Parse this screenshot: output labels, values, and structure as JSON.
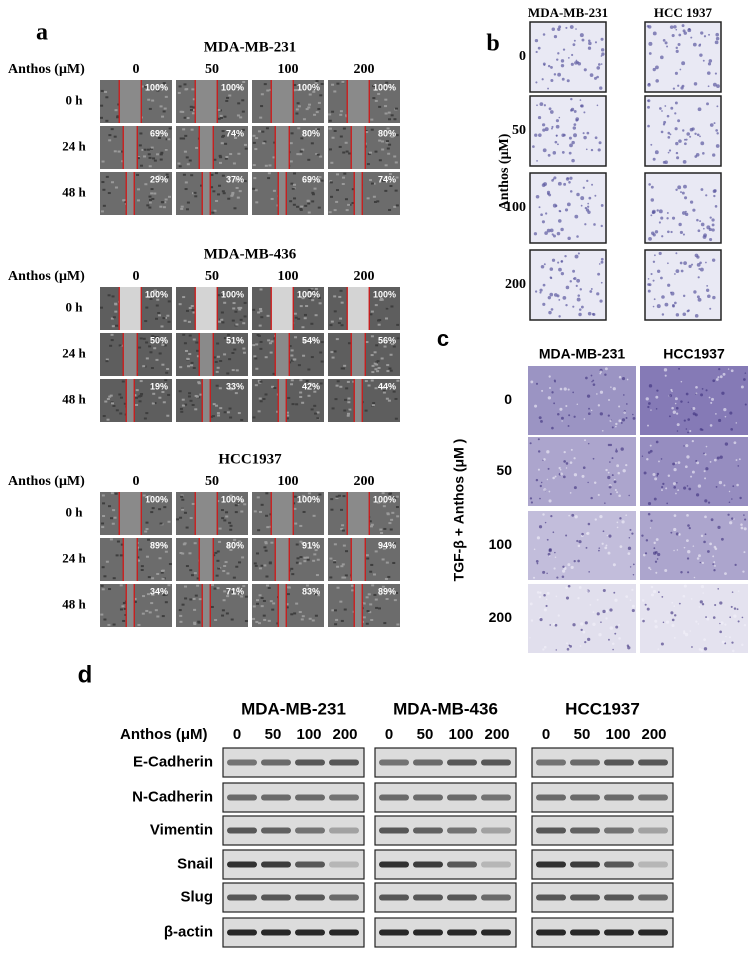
{
  "panel_a": {
    "label": "a",
    "concentration_label": "Anthos (μM)",
    "concentrations": [
      "0",
      "50",
      "100",
      "200"
    ],
    "time_points": [
      "0 h",
      "24 h",
      "48 h"
    ],
    "blocks": [
      {
        "title": "MDA-MB-231",
        "closure": [
          [
            "100%",
            "100%",
            "100%",
            "100%"
          ],
          [
            "69%",
            "74%",
            "80%",
            "80%"
          ],
          [
            "29%",
            "37%",
            "69%",
            "74%"
          ]
        ]
      },
      {
        "title": "MDA-MB-436",
        "closure": [
          [
            "100%",
            "100%",
            "100%",
            "100%"
          ],
          [
            "50%",
            "51%",
            "54%",
            "56%"
          ],
          [
            "19%",
            "33%",
            "42%",
            "44%"
          ]
        ]
      },
      {
        "title": "HCC1937",
        "closure": [
          [
            "100%",
            "100%",
            "100%",
            "100%"
          ],
          [
            "89%",
            "80%",
            "91%",
            "94%"
          ],
          [
            "34%",
            "71%",
            "83%",
            "89%"
          ]
        ]
      }
    ]
  },
  "panel_b": {
    "label": "b",
    "columns": [
      "MDA-MB-231",
      "HCC 1937"
    ],
    "axis_label": "Anthos (μM)",
    "rows": [
      "0",
      "50",
      "100",
      "200"
    ]
  },
  "panel_c": {
    "label": "c",
    "columns": [
      "MDA-MB-231",
      "HCC1937"
    ],
    "axis_label": "TGF-β + Anthos (μM )",
    "rows": [
      "0",
      "50",
      "100",
      "200"
    ]
  },
  "panel_d": {
    "label": "d",
    "groups": [
      "MDA-MB-231",
      "MDA-MB-436",
      "HCC1937"
    ],
    "concentration_label": "Anthos (μM)",
    "concentrations": [
      "0",
      "50",
      "100",
      "200"
    ],
    "proteins": [
      "E-Cadherin",
      "N-Cadherin",
      "Vimentin",
      "Snail",
      "Slug",
      "β-actin"
    ]
  }
}
